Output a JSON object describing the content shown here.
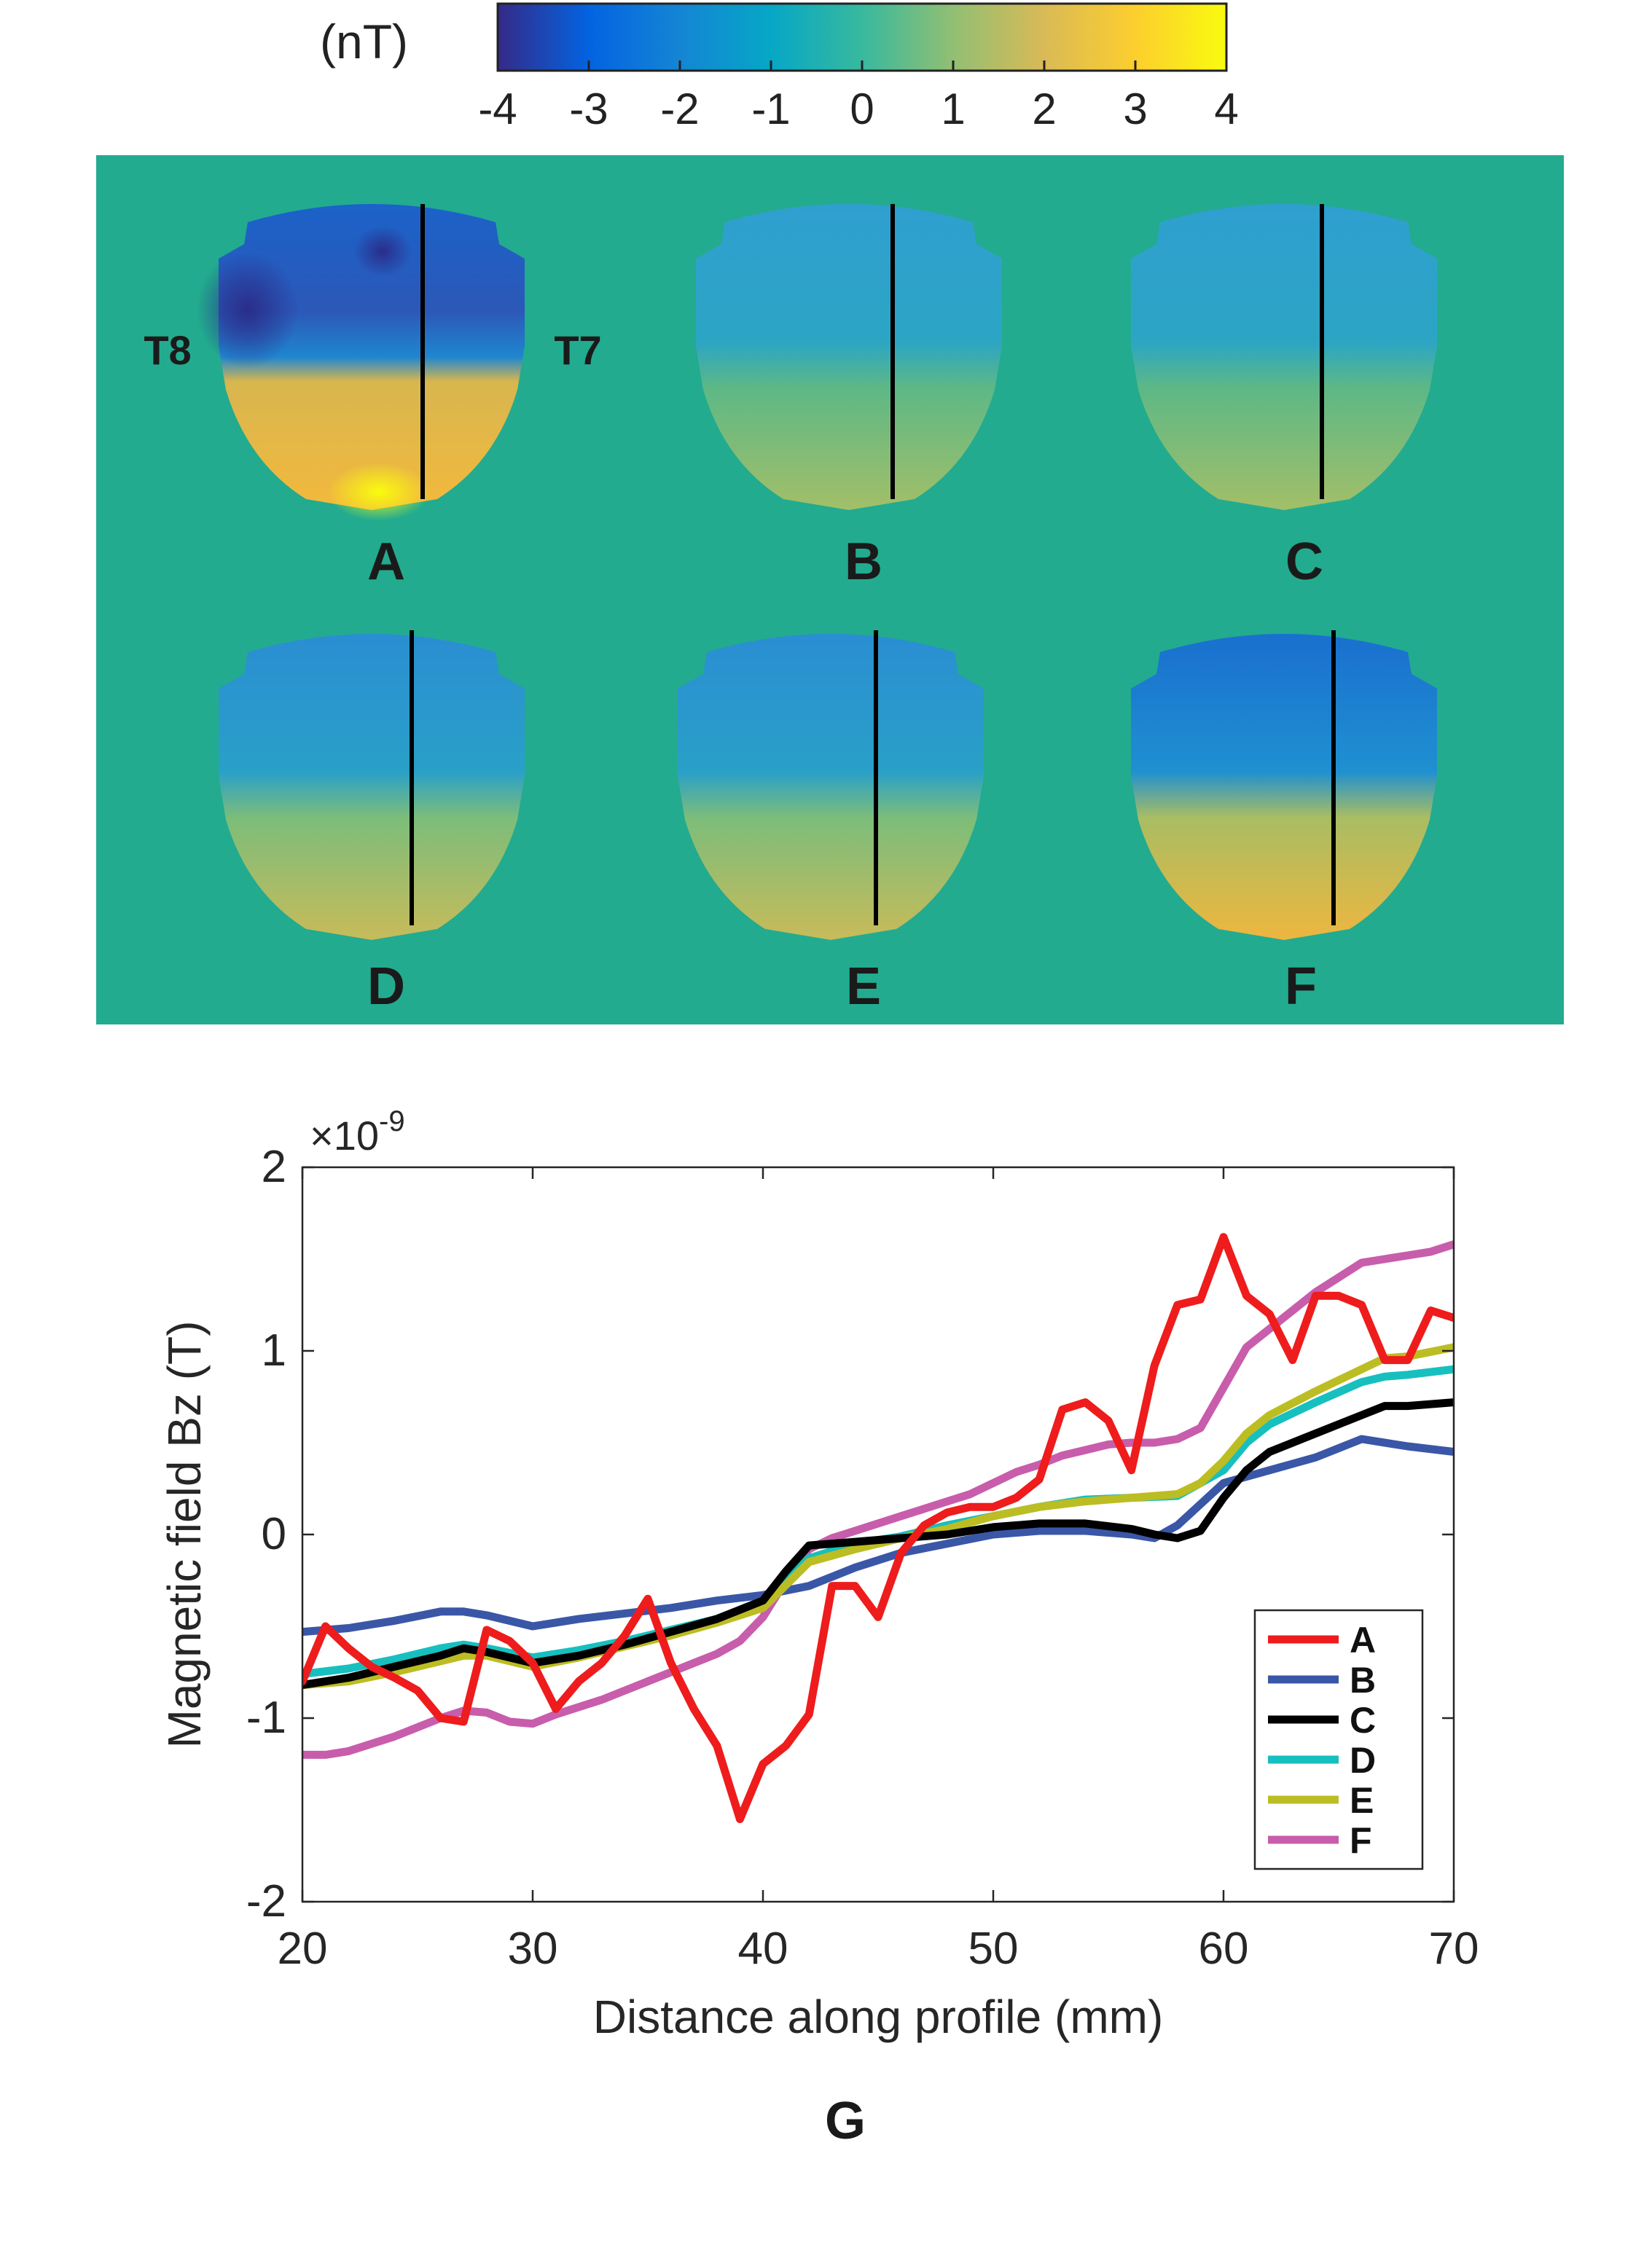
{
  "colorbar": {
    "unit_label": "(nT)",
    "ticks": [
      "-4",
      "-3",
      "-2",
      "-1",
      "0",
      "1",
      "2",
      "3",
      "4"
    ],
    "range": [
      -4,
      4
    ],
    "colormap": [
      "#352a87",
      "#0363e1",
      "#1485d4",
      "#06a7c6",
      "#38b99e",
      "#92bf73",
      "#d9ba56",
      "#fcce2e",
      "#f9fb0e"
    ]
  },
  "maps": {
    "background_color": "#22ab8f",
    "panels": [
      {
        "label": "A",
        "left_marker": "T8",
        "right_marker": "T7"
      },
      {
        "label": "B"
      },
      {
        "label": "C"
      },
      {
        "label": "D"
      },
      {
        "label": "E"
      },
      {
        "label": "F"
      }
    ]
  },
  "chart_data": {
    "type": "line",
    "title": "",
    "xlabel": "Distance along profile (mm)",
    "ylabel": "Magnetic field Bz (T)",
    "exponent_label": "×10",
    "exponent_power": "-9",
    "xlim": [
      20,
      70
    ],
    "ylim": [
      -2,
      2
    ],
    "xticks": [
      "20",
      "30",
      "40",
      "50",
      "60",
      "70"
    ],
    "yticks": [
      "-2",
      "-1",
      "0",
      "1",
      "2"
    ],
    "xtick_values": [
      20,
      30,
      40,
      50,
      60,
      70
    ],
    "ytick_values": [
      -2,
      -1,
      0,
      1,
      2
    ],
    "units_scale": "1e-9",
    "legend_position": "bottom-right",
    "series": [
      {
        "name": "A",
        "color": "#ee1c1c",
        "x": [
          20,
          21,
          22,
          23,
          24,
          25,
          26,
          27,
          28,
          29,
          30,
          31,
          32,
          33,
          34,
          35,
          36,
          37,
          38,
          39,
          40,
          41,
          42,
          43,
          44,
          45,
          46,
          47,
          48,
          49,
          50,
          51,
          52,
          53,
          54,
          55,
          56,
          57,
          58,
          59,
          60,
          61,
          62,
          63,
          64,
          65,
          66,
          67,
          68,
          69,
          70
        ],
        "y": [
          -0.8,
          -0.5,
          -0.62,
          -0.72,
          -0.78,
          -0.85,
          -1.0,
          -1.02,
          -0.52,
          -0.58,
          -0.7,
          -0.95,
          -0.8,
          -0.7,
          -0.55,
          -0.35,
          -0.7,
          -0.95,
          -1.15,
          -1.55,
          -1.25,
          -1.15,
          -0.98,
          -0.28,
          -0.28,
          -0.45,
          -0.1,
          0.05,
          0.12,
          0.15,
          0.15,
          0.2,
          0.3,
          0.68,
          0.72,
          0.62,
          0.35,
          0.92,
          1.25,
          1.28,
          1.62,
          1.3,
          1.2,
          0.95,
          1.3,
          1.3,
          1.25,
          0.95,
          0.95,
          1.22,
          1.18
        ]
      },
      {
        "name": "B",
        "color": "#3a57a7",
        "x": [
          20,
          22,
          24,
          26,
          27,
          28,
          30,
          32,
          34,
          36,
          38,
          40,
          42,
          44,
          46,
          48,
          50,
          52,
          54,
          56,
          57,
          58,
          60,
          62,
          64,
          66,
          68,
          70
        ],
        "y": [
          -0.53,
          -0.51,
          -0.47,
          -0.42,
          -0.42,
          -0.44,
          -0.5,
          -0.46,
          -0.43,
          -0.4,
          -0.36,
          -0.33,
          -0.28,
          -0.18,
          -0.1,
          -0.05,
          0.0,
          0.02,
          0.02,
          0.0,
          -0.02,
          0.05,
          0.28,
          0.35,
          0.42,
          0.52,
          0.48,
          0.45
        ]
      },
      {
        "name": "C",
        "color": "#000000",
        "x": [
          20,
          22,
          24,
          26,
          27,
          28,
          30,
          32,
          34,
          36,
          38,
          40,
          41,
          42,
          44,
          46,
          48,
          50,
          52,
          54,
          56,
          57,
          58,
          59,
          60,
          61,
          62,
          64,
          66,
          67,
          68,
          70
        ],
        "y": [
          -0.82,
          -0.78,
          -0.72,
          -0.66,
          -0.62,
          -0.64,
          -0.7,
          -0.66,
          -0.6,
          -0.53,
          -0.46,
          -0.36,
          -0.2,
          -0.06,
          -0.04,
          -0.02,
          0.0,
          0.04,
          0.06,
          0.06,
          0.03,
          0.0,
          -0.02,
          0.02,
          0.2,
          0.35,
          0.45,
          0.55,
          0.65,
          0.7,
          0.7,
          0.72
        ]
      },
      {
        "name": "D",
        "color": "#17bfbf",
        "x": [
          20,
          22,
          24,
          26,
          27,
          28,
          30,
          32,
          34,
          36,
          38,
          40,
          42,
          44,
          46,
          48,
          50,
          52,
          54,
          56,
          58,
          59,
          60,
          61,
          62,
          64,
          66,
          67,
          68,
          70
        ],
        "y": [
          -0.76,
          -0.73,
          -0.68,
          -0.62,
          -0.6,
          -0.62,
          -0.67,
          -0.63,
          -0.58,
          -0.52,
          -0.46,
          -0.36,
          -0.13,
          -0.05,
          -0.01,
          0.05,
          0.1,
          0.15,
          0.19,
          0.2,
          0.21,
          0.28,
          0.35,
          0.5,
          0.6,
          0.72,
          0.83,
          0.86,
          0.87,
          0.9
        ]
      },
      {
        "name": "E",
        "color": "#bcbd22",
        "x": [
          20,
          22,
          24,
          26,
          27,
          28,
          30,
          32,
          34,
          36,
          38,
          40,
          42,
          44,
          46,
          48,
          50,
          52,
          54,
          56,
          58,
          59,
          60,
          61,
          62,
          64,
          66,
          67,
          68,
          70
        ],
        "y": [
          -0.82,
          -0.8,
          -0.75,
          -0.69,
          -0.66,
          -0.66,
          -0.72,
          -0.67,
          -0.61,
          -0.55,
          -0.48,
          -0.4,
          -0.15,
          -0.08,
          -0.02,
          0.03,
          0.1,
          0.15,
          0.18,
          0.2,
          0.22,
          0.28,
          0.4,
          0.55,
          0.65,
          0.78,
          0.9,
          0.96,
          0.97,
          1.02
        ]
      },
      {
        "name": "F",
        "color": "#c85dac",
        "x": [
          20,
          21,
          22,
          23,
          24,
          25,
          26,
          27,
          28,
          29,
          30,
          31,
          32,
          33,
          34,
          35,
          36,
          37,
          38,
          39,
          40,
          41,
          42,
          43,
          44,
          45,
          46,
          47,
          48,
          49,
          50,
          51,
          52,
          53,
          54,
          55,
          56,
          57,
          58,
          59,
          60,
          61,
          62,
          63,
          64,
          65,
          66,
          67,
          68,
          69,
          70
        ],
        "y": [
          -1.2,
          -1.2,
          -1.18,
          -1.14,
          -1.1,
          -1.05,
          -1.0,
          -0.96,
          -0.97,
          -1.02,
          -1.03,
          -0.98,
          -0.94,
          -0.9,
          -0.85,
          -0.8,
          -0.75,
          -0.7,
          -0.65,
          -0.58,
          -0.45,
          -0.25,
          -0.08,
          -0.02,
          0.02,
          0.06,
          0.1,
          0.14,
          0.18,
          0.22,
          0.28,
          0.34,
          0.38,
          0.43,
          0.46,
          0.49,
          0.5,
          0.5,
          0.52,
          0.58,
          0.8,
          1.02,
          1.12,
          1.22,
          1.32,
          1.4,
          1.48,
          1.5,
          1.52,
          1.54,
          1.58
        ]
      }
    ]
  },
  "caption": "G"
}
